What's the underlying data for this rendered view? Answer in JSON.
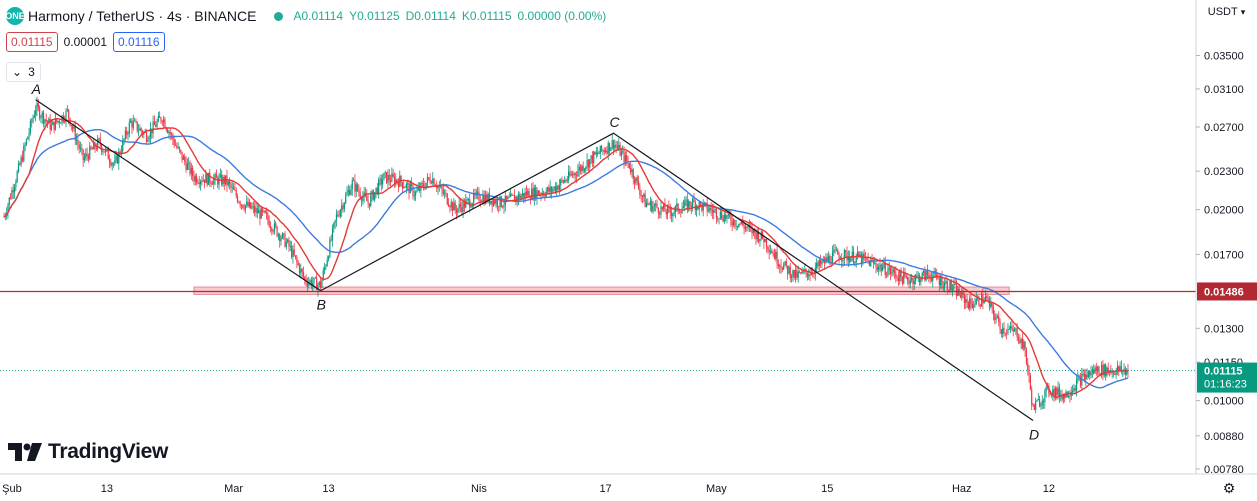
{
  "header": {
    "symbol": "Harmony / TetherUS · 4s · BINANCE",
    "logo_label": "ONE",
    "open": "0.01114",
    "high": "0.01125",
    "low": "0.01114",
    "close": "0.01115",
    "change": "0.00000 (0.00%)",
    "labels": {
      "open": "A",
      "high": "Y",
      "low": "D",
      "close": "K"
    },
    "bid": "0.01115",
    "spread": "0.00001",
    "ask": "0.01116",
    "indicators_count": "3",
    "status_color": "#22ab94"
  },
  "price_axis": {
    "currency": "USDT"
  },
  "footer": {
    "brand": "TradingView",
    "settings_icon": "gear-icon"
  },
  "colors": {
    "up": "#089981",
    "down": "#f23645",
    "ma_fast": "#e53935",
    "ma_slow": "#3d7be0",
    "support": "#b22833",
    "support_zone": "#f8c9cf",
    "current_price": "#089981",
    "pattern": "#131722"
  },
  "chart_data": {
    "type": "candlestick",
    "title": "Harmony / TetherUS · 4s · BINANCE",
    "scale": "log",
    "y_ticks": [
      "0.03500",
      "0.03100",
      "0.02700",
      "0.02300",
      "0.02000",
      "0.01700",
      "0.01486",
      "0.01300",
      "0.01150",
      "0.01000",
      "0.00880",
      "0.00780"
    ],
    "y_tick_values": [
      0.035,
      0.031,
      0.027,
      0.023,
      0.02,
      0.017,
      0.01486,
      0.013,
      0.0115,
      0.01,
      0.0088,
      0.0078
    ],
    "ylim": [
      0.0077,
      0.04
    ],
    "x_ticks": [
      "Şub",
      "13",
      "Mar",
      "13",
      "Nis",
      "17",
      "May",
      "15",
      "Haz",
      "12"
    ],
    "x_tick_dates": [
      "2022-02-01",
      "2022-02-13",
      "2022-03-01",
      "2022-03-13",
      "2022-04-01",
      "2022-04-17",
      "2022-05-01",
      "2022-05-15",
      "2022-06-01",
      "2022-06-12"
    ],
    "x_range": [
      "2022-01-31",
      "2022-06-22"
    ],
    "pattern": [
      {
        "label": "A",
        "date": "2022-02-04",
        "price": 0.0298
      },
      {
        "label": "B",
        "date": "2022-03-12",
        "price": 0.0149
      },
      {
        "label": "C",
        "date": "2022-04-18",
        "price": 0.0264
      },
      {
        "label": "D",
        "date": "2022-06-10",
        "price": 0.0093
      }
    ],
    "support_level": {
      "price": 0.01486,
      "label": "0.01486",
      "zone_low": 0.0147,
      "zone_high": 0.0151,
      "zone_start": "2022-02-24",
      "zone_end": "2022-06-07"
    },
    "current_price": {
      "price": 0.01115,
      "label": "0.01115",
      "countdown": "01:16:23"
    },
    "price_path": [
      {
        "date": "2022-01-31",
        "price": 0.0195
      },
      {
        "date": "2022-02-02",
        "price": 0.0235
      },
      {
        "date": "2022-02-04",
        "price": 0.029
      },
      {
        "date": "2022-02-06",
        "price": 0.027
      },
      {
        "date": "2022-02-08",
        "price": 0.0285
      },
      {
        "date": "2022-02-10",
        "price": 0.024
      },
      {
        "date": "2022-02-12",
        "price": 0.0255
      },
      {
        "date": "2022-02-14",
        "price": 0.0235
      },
      {
        "date": "2022-02-16",
        "price": 0.0275
      },
      {
        "date": "2022-02-18",
        "price": 0.0262
      },
      {
        "date": "2022-02-20",
        "price": 0.028
      },
      {
        "date": "2022-02-22",
        "price": 0.0248
      },
      {
        "date": "2022-02-24",
        "price": 0.0225
      },
      {
        "date": "2022-02-28",
        "price": 0.0222
      },
      {
        "date": "2022-03-02",
        "price": 0.0205
      },
      {
        "date": "2022-03-05",
        "price": 0.0195
      },
      {
        "date": "2022-03-08",
        "price": 0.0175
      },
      {
        "date": "2022-03-10",
        "price": 0.0155
      },
      {
        "date": "2022-03-12",
        "price": 0.0152
      },
      {
        "date": "2022-03-14",
        "price": 0.0195
      },
      {
        "date": "2022-03-16",
        "price": 0.022
      },
      {
        "date": "2022-03-18",
        "price": 0.0205
      },
      {
        "date": "2022-03-20",
        "price": 0.0225
      },
      {
        "date": "2022-03-22",
        "price": 0.0222
      },
      {
        "date": "2022-03-24",
        "price": 0.0212
      },
      {
        "date": "2022-03-26",
        "price": 0.0225
      },
      {
        "date": "2022-03-29",
        "price": 0.02
      },
      {
        "date": "2022-04-01",
        "price": 0.021
      },
      {
        "date": "2022-04-04",
        "price": 0.0205
      },
      {
        "date": "2022-04-07",
        "price": 0.0212
      },
      {
        "date": "2022-04-10",
        "price": 0.0214
      },
      {
        "date": "2022-04-13",
        "price": 0.0228
      },
      {
        "date": "2022-04-16",
        "price": 0.0245
      },
      {
        "date": "2022-04-18",
        "price": 0.0255
      },
      {
        "date": "2022-04-20",
        "price": 0.0235
      },
      {
        "date": "2022-04-22",
        "price": 0.0205
      },
      {
        "date": "2022-04-25",
        "price": 0.0198
      },
      {
        "date": "2022-04-28",
        "price": 0.0205
      },
      {
        "date": "2022-05-01",
        "price": 0.0198
      },
      {
        "date": "2022-05-04",
        "price": 0.019
      },
      {
        "date": "2022-05-07",
        "price": 0.018
      },
      {
        "date": "2022-05-09",
        "price": 0.0165
      },
      {
        "date": "2022-05-11",
        "price": 0.0157
      },
      {
        "date": "2022-05-13",
        "price": 0.016
      },
      {
        "date": "2022-05-16",
        "price": 0.017
      },
      {
        "date": "2022-05-19",
        "price": 0.0168
      },
      {
        "date": "2022-05-22",
        "price": 0.0162
      },
      {
        "date": "2022-05-25",
        "price": 0.0155
      },
      {
        "date": "2022-05-28",
        "price": 0.0158
      },
      {
        "date": "2022-05-31",
        "price": 0.015
      },
      {
        "date": "2022-06-02",
        "price": 0.0142
      },
      {
        "date": "2022-06-04",
        "price": 0.0145
      },
      {
        "date": "2022-06-06",
        "price": 0.013
      },
      {
        "date": "2022-06-08",
        "price": 0.0128
      },
      {
        "date": "2022-06-09",
        "price": 0.012
      },
      {
        "date": "2022-06-10",
        "price": 0.0097
      },
      {
        "date": "2022-06-12",
        "price": 0.0104
      },
      {
        "date": "2022-06-14",
        "price": 0.0102
      },
      {
        "date": "2022-06-16",
        "price": 0.0108
      },
      {
        "date": "2022-06-18",
        "price": 0.0112
      },
      {
        "date": "2022-06-20",
        "price": 0.01115
      }
    ],
    "grid": false
  }
}
